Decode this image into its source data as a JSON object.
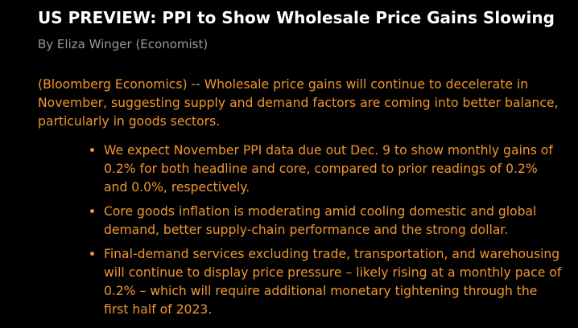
{
  "article": {
    "headline": "US PREVIEW: PPI to Show Wholesale Price Gains Slowing",
    "byline": "By Eliza Winger (Economist)",
    "lead": "(Bloomberg Economics) -- Wholesale price gains will continue to decelerate in November, suggesting supply and demand factors are coming into better balance, particularly in goods sectors.",
    "bullets": [
      "We expect November PPI data due out Dec. 9 to show monthly gains of 0.2% for both headline and core, compared to prior readings of 0.2% and 0.0%, respectively.",
      "Core goods inflation is moderating amid cooling domestic and global demand, better supply-chain performance and the strong dollar.",
      "Final-demand services excluding trade, transportation, and warehousing will continue to display price pressure – likely rising at a monthly pace of 0.2% – which will require additional monetary tightening through the first half of 2023."
    ]
  },
  "colors": {
    "background": "#000000",
    "headline": "#ffffff",
    "byline": "#9a9a9a",
    "body_text": "#f0962e"
  }
}
